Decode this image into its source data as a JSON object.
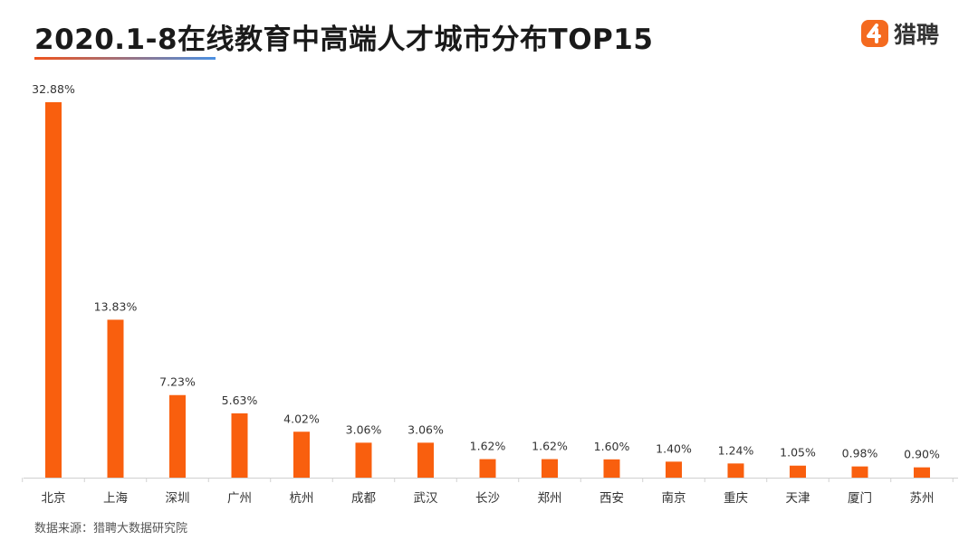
{
  "title": "2020.1-8在线教育中高端人才城市分布TOP15",
  "logo": {
    "text": "猎聘",
    "brand_color": "#f46a1f"
  },
  "source": "数据来源：猎聘大数据研究院",
  "chart_data": {
    "type": "bar",
    "categories": [
      "北京",
      "上海",
      "深圳",
      "广州",
      "杭州",
      "成都",
      "武汉",
      "长沙",
      "郑州",
      "西安",
      "南京",
      "重庆",
      "天津",
      "厦门",
      "苏州"
    ],
    "values": [
      32.88,
      13.83,
      7.23,
      5.63,
      4.02,
      3.06,
      3.06,
      1.62,
      1.62,
      1.6,
      1.4,
      1.24,
      1.05,
      0.98,
      0.9
    ],
    "value_labels": [
      "32.88%",
      "13.83%",
      "7.23%",
      "5.63%",
      "4.02%",
      "3.06%",
      "3.06%",
      "1.62%",
      "1.62%",
      "1.60%",
      "1.40%",
      "1.24%",
      "1.05%",
      "0.98%",
      "0.90%"
    ],
    "ylim": [
      0,
      32.88
    ],
    "bar_color": "#f95f0e",
    "grid": false,
    "legend": "none"
  }
}
